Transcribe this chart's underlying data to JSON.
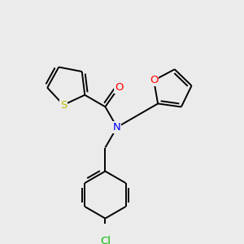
{
  "background_color": "#EBEBEB",
  "atom_colors": {
    "S": "#BBBB00",
    "O": "#FF0000",
    "N": "#0000FF",
    "Cl": "#00BB00",
    "C": "#000000"
  },
  "bond_lw": 1.4,
  "dbo": 0.012,
  "figsize": [
    3.0,
    3.0
  ],
  "dpi": 100
}
